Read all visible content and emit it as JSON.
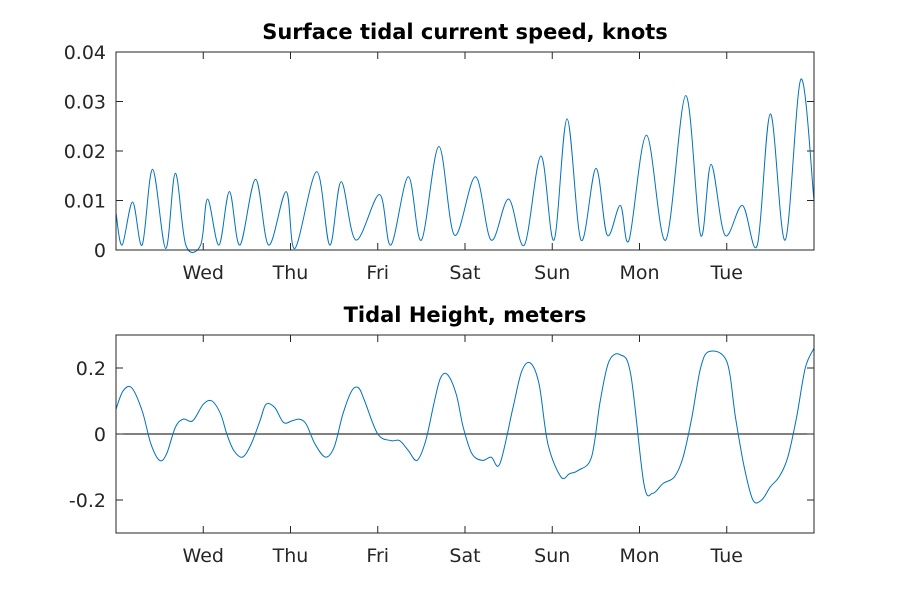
{
  "chart_data": [
    {
      "type": "line",
      "title": "Surface tidal current speed, knots",
      "xlabel": "",
      "ylabel": "",
      "x_ticks": [
        "Wed",
        "Thu",
        "Fri",
        "Sat",
        "Sun",
        "Mon",
        "Tue"
      ],
      "y_ticks": [
        "0",
        "0.01",
        "0.02",
        "0.03",
        "0.04"
      ],
      "y_tick_values": [
        0,
        0.01,
        0.02,
        0.03,
        0.04
      ],
      "xlim_days": [
        0,
        8
      ],
      "ylim": [
        0,
        0.04
      ],
      "grid": false,
      "series_color": "#0072BD",
      "series": [
        {
          "x": [
            0.0,
            0.07,
            0.19,
            0.3,
            0.42,
            0.57,
            0.68,
            0.8,
            0.97,
            1.05,
            1.18,
            1.3,
            1.42,
            1.6,
            1.75,
            1.95,
            2.05,
            2.3,
            2.45,
            2.58,
            2.75,
            3.02,
            3.15,
            3.35,
            3.5,
            3.7,
            3.88,
            4.12,
            4.3,
            4.5,
            4.68,
            4.87,
            5.02,
            5.17,
            5.33,
            5.5,
            5.63,
            5.78,
            5.88,
            6.08,
            6.3,
            6.53,
            6.7,
            6.82,
            6.98,
            7.18,
            7.35,
            7.5,
            7.67,
            7.85,
            8.0
          ],
          "y": [
            0.0075,
            0.001,
            0.0097,
            0.001,
            0.0163,
            0.0003,
            0.0155,
            0.001,
            0.001,
            0.0103,
            0.001,
            0.0118,
            0.001,
            0.0143,
            0.001,
            0.0118,
            0.0003,
            0.0158,
            0.001,
            0.0138,
            0.002,
            0.0112,
            0.001,
            0.0148,
            0.002,
            0.0209,
            0.003,
            0.0148,
            0.002,
            0.0103,
            0.001,
            0.019,
            0.002,
            0.0265,
            0.002,
            0.0165,
            0.003,
            0.009,
            0.002,
            0.0232,
            0.002,
            0.0312,
            0.003,
            0.0173,
            0.003,
            0.009,
            0.001,
            0.0275,
            0.002,
            0.0345,
            0.01
          ]
        }
      ]
    },
    {
      "type": "line",
      "title": "Tidal Height, meters",
      "xlabel": "",
      "ylabel": "",
      "x_ticks": [
        "Wed",
        "Thu",
        "Fri",
        "Sat",
        "Sun",
        "Mon",
        "Tue"
      ],
      "y_ticks": [
        "-0.2",
        "0",
        "0.2"
      ],
      "y_tick_values": [
        -0.2,
        0,
        0.2
      ],
      "xlim_days": [
        0,
        8
      ],
      "ylim": [
        -0.3,
        0.3
      ],
      "zero_line": true,
      "grid": false,
      "series_color": "#0072BD",
      "series": [
        {
          "x": [
            0.0,
            0.08,
            0.18,
            0.3,
            0.4,
            0.5,
            0.58,
            0.68,
            0.77,
            0.88,
            1.0,
            1.1,
            1.2,
            1.27,
            1.35,
            1.45,
            1.55,
            1.65,
            1.72,
            1.82,
            1.92,
            2.02,
            2.1,
            2.18,
            2.28,
            2.4,
            2.5,
            2.6,
            2.7,
            2.78,
            2.85,
            3.0,
            3.15,
            3.25,
            3.35,
            3.45,
            3.55,
            3.65,
            3.72,
            3.8,
            3.9,
            3.98,
            4.08,
            4.2,
            4.3,
            4.4,
            4.55,
            4.65,
            4.75,
            4.85,
            4.95,
            5.1,
            5.2,
            5.3,
            5.45,
            5.55,
            5.65,
            5.78,
            5.9,
            6.05,
            6.15,
            6.27,
            6.4,
            6.5,
            6.6,
            6.7,
            6.8,
            7.0,
            7.1,
            7.2,
            7.3,
            7.4,
            7.5,
            7.6,
            7.7,
            7.8,
            7.9,
            8.0
          ],
          "y": [
            0.075,
            0.13,
            0.14,
            0.07,
            -0.03,
            -0.08,
            -0.06,
            0.02,
            0.045,
            0.04,
            0.09,
            0.1,
            0.06,
            0.0,
            -0.05,
            -0.07,
            -0.03,
            0.04,
            0.09,
            0.08,
            0.035,
            0.04,
            0.045,
            0.03,
            -0.03,
            -0.07,
            -0.04,
            0.06,
            0.13,
            0.14,
            0.1,
            0.0,
            -0.02,
            -0.02,
            -0.05,
            -0.08,
            -0.02,
            0.1,
            0.17,
            0.18,
            0.12,
            0.02,
            -0.06,
            -0.08,
            -0.07,
            -0.09,
            0.08,
            0.19,
            0.215,
            0.15,
            -0.03,
            -0.13,
            -0.12,
            -0.11,
            -0.07,
            0.1,
            0.22,
            0.24,
            0.18,
            -0.15,
            -0.18,
            -0.15,
            -0.13,
            -0.07,
            0.05,
            0.2,
            0.25,
            0.22,
            0.05,
            -0.1,
            -0.2,
            -0.2,
            -0.16,
            -0.13,
            -0.07,
            0.05,
            0.2,
            0.26
          ]
        }
      ]
    }
  ]
}
